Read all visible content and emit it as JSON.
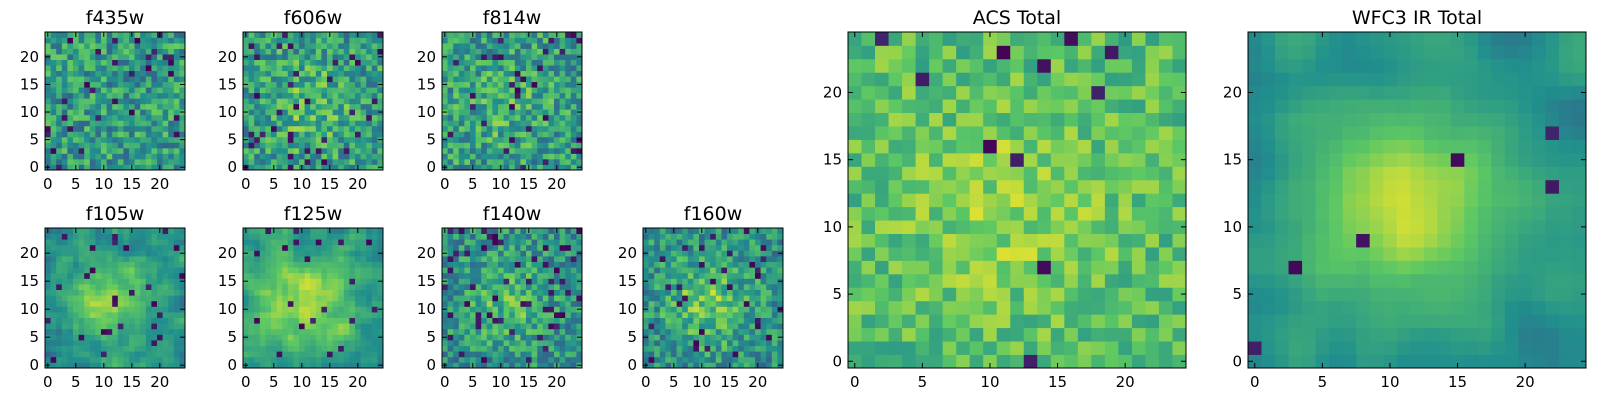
{
  "figure": {
    "grid_size": 25,
    "colormap": "viridis",
    "colormap_stops": [
      "#440154",
      "#3b528b",
      "#21908d",
      "#5dc863",
      "#fde725"
    ]
  },
  "chart_data": [
    {
      "type": "heatmap",
      "title": "f435w",
      "xticks": [
        0,
        5,
        10,
        15,
        20
      ],
      "yticks": [
        0,
        5,
        10,
        15,
        20
      ],
      "xlim": [
        0,
        24
      ],
      "ylim": [
        0,
        24
      ],
      "seed": 11,
      "base": 0.55,
      "noise": 0.45,
      "blob": 0.0,
      "smooth": 0,
      "dark_fraction": 0.05
    },
    {
      "type": "heatmap",
      "title": "f606w",
      "xticks": [
        0,
        5,
        10,
        15,
        20
      ],
      "yticks": [
        0,
        5,
        10,
        15,
        20
      ],
      "xlim": [
        0,
        24
      ],
      "ylim": [
        0,
        24
      ],
      "seed": 23,
      "base": 0.55,
      "noise": 0.45,
      "blob": 0.15,
      "smooth": 0,
      "dark_fraction": 0.05
    },
    {
      "type": "heatmap",
      "title": "f814w",
      "xticks": [
        0,
        5,
        10,
        15,
        20
      ],
      "yticks": [
        0,
        5,
        10,
        15,
        20
      ],
      "xlim": [
        0,
        24
      ],
      "ylim": [
        0,
        24
      ],
      "seed": 37,
      "base": 0.55,
      "noise": 0.45,
      "blob": 0.1,
      "smooth": 0,
      "dark_fraction": 0.05
    },
    {
      "type": "heatmap",
      "title": "f105w",
      "xticks": [
        0,
        5,
        10,
        15,
        20
      ],
      "yticks": [
        0,
        5,
        10,
        15,
        20
      ],
      "xlim": [
        0,
        24
      ],
      "ylim": [
        0,
        24
      ],
      "seed": 41,
      "base": 0.5,
      "noise": 0.35,
      "blob": 0.35,
      "smooth": 1,
      "dark_fraction": 0.05
    },
    {
      "type": "heatmap",
      "title": "f125w",
      "xticks": [
        0,
        5,
        10,
        15,
        20
      ],
      "yticks": [
        0,
        5,
        10,
        15,
        20
      ],
      "xlim": [
        0,
        24
      ],
      "ylim": [
        0,
        24
      ],
      "seed": 53,
      "base": 0.55,
      "noise": 0.35,
      "blob": 0.3,
      "smooth": 1,
      "dark_fraction": 0.04
    },
    {
      "type": "heatmap",
      "title": "f140w",
      "xticks": [
        0,
        5,
        10,
        15,
        20
      ],
      "yticks": [
        0,
        5,
        10,
        15,
        20
      ],
      "xlim": [
        0,
        24
      ],
      "ylim": [
        0,
        24
      ],
      "seed": 67,
      "base": 0.5,
      "noise": 0.4,
      "blob": 0.2,
      "smooth": 0,
      "dark_fraction": 0.06
    },
    {
      "type": "heatmap",
      "title": "f160w",
      "xticks": [
        0,
        5,
        10,
        15,
        20
      ],
      "yticks": [
        0,
        5,
        10,
        15,
        20
      ],
      "xlim": [
        0,
        24
      ],
      "ylim": [
        0,
        24
      ],
      "seed": 79,
      "base": 0.5,
      "noise": 0.4,
      "blob": 0.25,
      "smooth": 0,
      "dark_fraction": 0.06
    },
    {
      "type": "heatmap",
      "title": "ACS Total",
      "xticks": [
        0,
        5,
        10,
        15,
        20
      ],
      "yticks": [
        0,
        5,
        10,
        15,
        20
      ],
      "xlim": [
        0,
        24
      ],
      "ylim": [
        0,
        24
      ],
      "seed": 97,
      "base": 0.7,
      "noise": 0.3,
      "blob": 0.12,
      "smooth": 0,
      "dark_fraction": 0.025
    },
    {
      "type": "heatmap",
      "title": "WFC3 IR Total",
      "xticks": [
        0,
        5,
        10,
        15,
        20
      ],
      "yticks": [
        0,
        5,
        10,
        15,
        20
      ],
      "xlim": [
        0,
        24
      ],
      "ylim": [
        0,
        24
      ],
      "seed": 113,
      "base": 0.5,
      "noise": 0.22,
      "blob": 0.4,
      "smooth": 2,
      "dark_fraction": 0.015
    }
  ]
}
